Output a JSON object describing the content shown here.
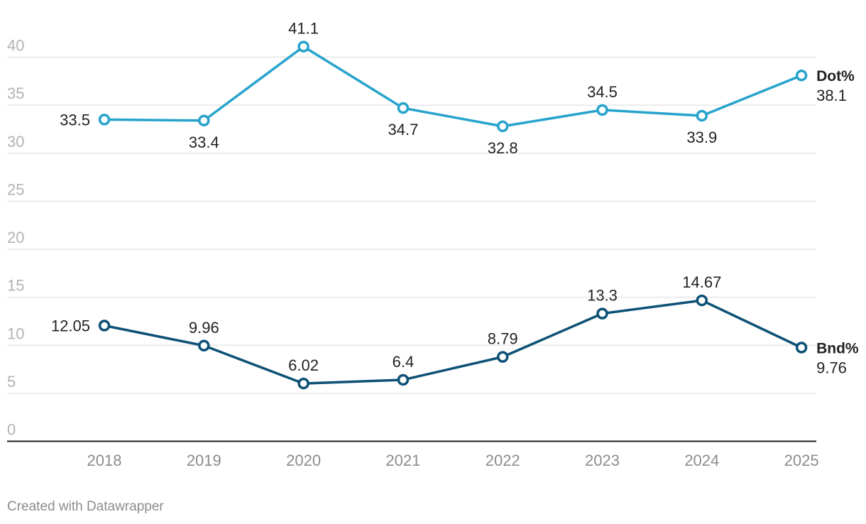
{
  "chart_data": {
    "type": "line",
    "x": [
      "2018",
      "2019",
      "2020",
      "2021",
      "2022",
      "2023",
      "2024",
      "2025"
    ],
    "ylim": [
      0,
      40
    ],
    "yticks": [
      0,
      5,
      10,
      15,
      20,
      25,
      30,
      35,
      40
    ],
    "grid": true,
    "series": [
      {
        "name": "Dot%",
        "color": "#27a3cc",
        "values": [
          33.5,
          33.4,
          41.1,
          34.7,
          32.8,
          34.5,
          33.9,
          38.1
        ],
        "labels": [
          "33.5",
          "33.4",
          "41.1",
          "34.7",
          "32.8",
          "34.5",
          "33.9",
          "38.1"
        ]
      },
      {
        "name": "Bnd%",
        "color": "#0d5176",
        "values": [
          12.05,
          9.96,
          6.02,
          6.4,
          8.79,
          13.3,
          14.67,
          9.76
        ],
        "labels": [
          "12.05",
          "9.96",
          "6.02",
          "6.4",
          "8.79",
          "13.3",
          "14.67",
          "9.76"
        ]
      }
    ]
  },
  "footer": "Created with Datawrapper"
}
